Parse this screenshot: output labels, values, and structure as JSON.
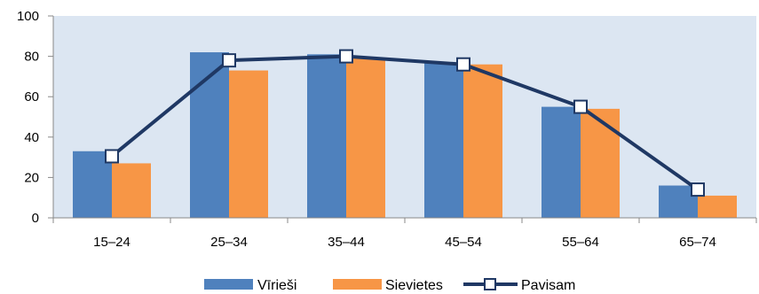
{
  "chart_data": {
    "type": "bar",
    "categories": [
      "15–24",
      "25–34",
      "35–44",
      "45–54",
      "55–64",
      "65–74"
    ],
    "series": [
      {
        "name": "Vīrieši",
        "type": "bar",
        "color": "#4F81BD",
        "values": [
          33,
          82,
          81,
          77,
          55,
          16
        ]
      },
      {
        "name": "Sievietes",
        "type": "bar",
        "color": "#F79646",
        "values": [
          27,
          73,
          79,
          76,
          54,
          11
        ]
      },
      {
        "name": "Pavisam",
        "type": "line",
        "color": "#1F3864",
        "marker": "square-open",
        "values": [
          30.5,
          78,
          80,
          76,
          55,
          14
        ]
      }
    ],
    "ylim": [
      0,
      100
    ],
    "yticks": [
      0,
      20,
      40,
      60,
      80,
      100
    ],
    "plot_background": "#DCE6F2",
    "grid": false,
    "legend": "bottom-center"
  }
}
